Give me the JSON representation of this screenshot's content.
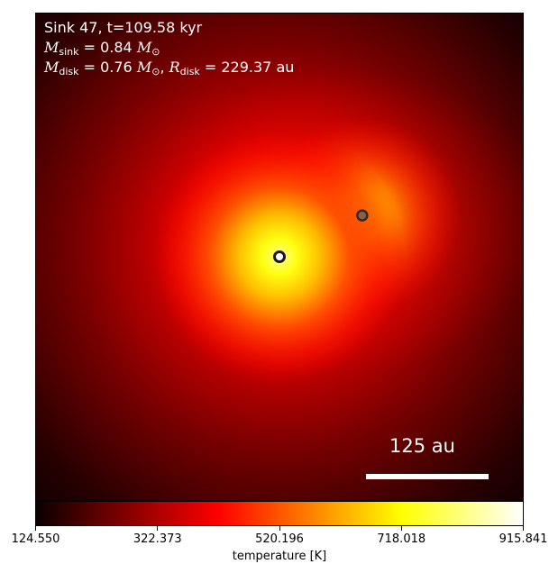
{
  "chart_data": {
    "type": "heatmap",
    "title_line1": "Sink 47, t=109.58 kyr",
    "m_sink": "0.84",
    "m_disk": "0.76",
    "r_disk": "229.37",
    "scale_bar_label": "125 au",
    "colorbar": {
      "label": "temperature [K]",
      "min": 124.55,
      "max": 915.841,
      "ticks": [
        "124.550",
        "322.373",
        "520.196",
        "718.018",
        "915.841"
      ],
      "colormap": "hot"
    },
    "sinks": [
      {
        "name": "primary",
        "x": 0.5,
        "y": 0.5
      },
      {
        "name": "secondary",
        "x": 0.67,
        "y": 0.415
      }
    ]
  }
}
